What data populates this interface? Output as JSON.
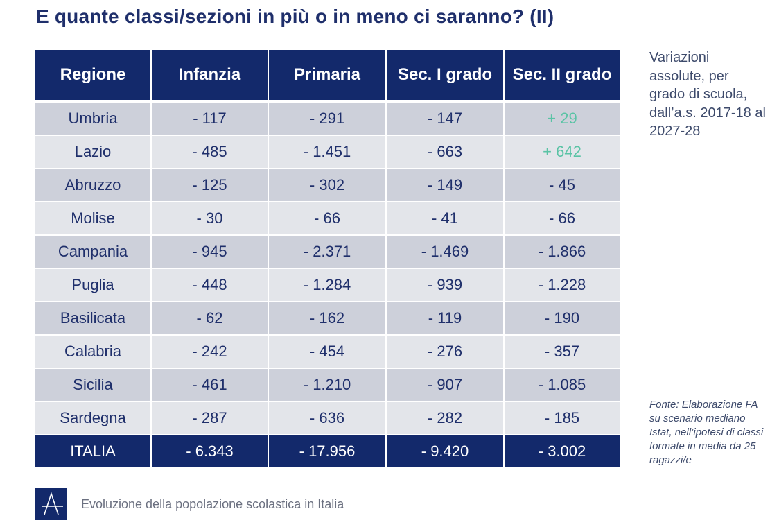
{
  "title": "E quante classi/sezioni in più o in meno ci saranno? (II)",
  "table": {
    "headers": [
      "Regione",
      "Infanzia",
      "Primaria",
      "Sec. I grado",
      "Sec. II grado"
    ],
    "rows": [
      [
        "Umbria",
        "- 117",
        "- 291",
        "- 147",
        "+ 29"
      ],
      [
        "Lazio",
        "- 485",
        "- 1.451",
        "- 663",
        "+ 642"
      ],
      [
        "Abruzzo",
        "- 125",
        "- 302",
        "- 149",
        "- 45"
      ],
      [
        "Molise",
        "- 30",
        "- 66",
        "- 41",
        "- 66"
      ],
      [
        "Campania",
        "- 945",
        "- 2.371",
        "- 1.469",
        "- 1.866"
      ],
      [
        "Puglia",
        "- 448",
        "- 1.284",
        "- 939",
        "- 1.228"
      ],
      [
        "Basilicata",
        "- 62",
        "- 162",
        "- 119",
        "- 190"
      ],
      [
        "Calabria",
        "- 242",
        "- 454",
        "- 276",
        "- 357"
      ],
      [
        "Sicilia",
        "- 461",
        "- 1.210",
        "- 907",
        "- 1.085"
      ],
      [
        "Sardegna",
        "- 287",
        "- 636",
        "- 282",
        "- 185"
      ]
    ],
    "total": [
      "ITALIA",
      "- 6.343",
      "- 17.956",
      "- 9.420",
      "- 3.002"
    ]
  },
  "side_note": "Variazioni assolute, per grado di scuola, dall’a.s. 2017-18 al 2027-28",
  "source_note": "Fonte: Elaborazione FA su scenario mediano Istat, nell’ipotesi di classi formate in media da 25 ragazzi/e",
  "footer": {
    "logo_letter": "A",
    "text": "Evoluzione della popolazione scolastica in Italia"
  },
  "colors": {
    "header_bg": "#13296b",
    "row_odd": "#cdd0da",
    "row_even": "#e3e5ea",
    "positive": "#5ac3a5"
  }
}
